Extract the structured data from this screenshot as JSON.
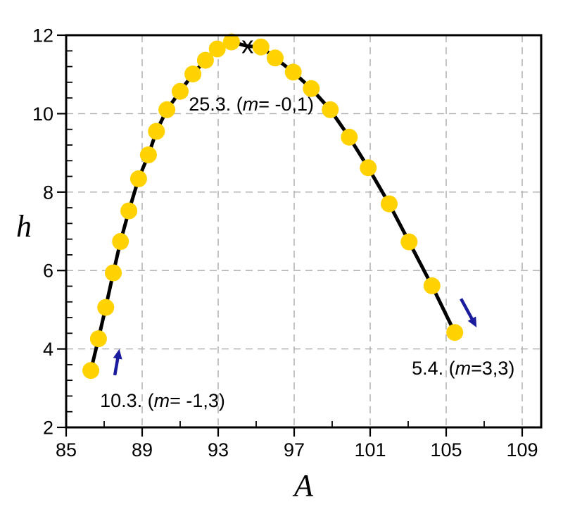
{
  "chart_data": {
    "type": "scatter",
    "title": "",
    "xlabel": "A",
    "ylabel": "h",
    "xlim": [
      85,
      110
    ],
    "ylim": [
      2,
      12
    ],
    "x_major_ticks": [
      85,
      89,
      93,
      97,
      101,
      105,
      109
    ],
    "x_tick_labels": [
      "85",
      "89",
      "93",
      "97",
      "101",
      "105",
      "109"
    ],
    "x_minor_step": 2,
    "y_major_ticks": [
      2,
      4,
      6,
      8,
      10,
      12
    ],
    "y_tick_labels": [
      "2",
      "4",
      "6",
      "8",
      "10",
      "12"
    ],
    "y_minor_step": 0.4,
    "grid": {
      "show": true,
      "style": "dashed",
      "at": "major-ticks",
      "legend": "none"
    },
    "series": [
      {
        "name": "sun-position-curve",
        "marker": "circle",
        "points": [
          [
            86.3,
            3.45
          ],
          [
            86.7,
            4.26
          ],
          [
            87.08,
            5.06
          ],
          [
            87.48,
            5.94
          ],
          [
            87.86,
            6.74
          ],
          [
            88.3,
            7.52
          ],
          [
            88.81,
            8.34
          ],
          [
            89.33,
            8.95
          ],
          [
            89.75,
            9.55
          ],
          [
            90.3,
            10.1
          ],
          [
            91.0,
            10.57
          ],
          [
            91.67,
            11.01
          ],
          [
            92.33,
            11.36
          ],
          [
            92.95,
            11.65
          ],
          [
            93.7,
            11.83
          ],
          [
            94.55,
            11.72
          ],
          [
            95.25,
            11.7
          ],
          [
            96.0,
            11.42
          ],
          [
            96.95,
            11.06
          ],
          [
            97.9,
            10.64
          ],
          [
            98.9,
            10.1
          ],
          [
            99.9,
            9.4
          ],
          [
            100.9,
            8.62
          ],
          [
            102.0,
            7.7
          ],
          [
            103.05,
            6.73
          ],
          [
            104.25,
            5.61
          ],
          [
            105.45,
            4.42
          ]
        ],
        "x_marker_index": 15,
        "x_marker_glyph": "x"
      }
    ],
    "annotations": [
      {
        "name": "annotation-25-3",
        "parts": [
          "25.3. (",
          "m",
          "= -0,1)"
        ],
        "A": 91.45,
        "h": 10.08,
        "anchor": "start"
      },
      {
        "name": "annotation-10-3",
        "parts": [
          "10.3. (",
          "m",
          "= -1,3)"
        ],
        "A": 86.78,
        "h": 2.52,
        "anchor": "start"
      },
      {
        "name": "annotation-5-4",
        "parts": [
          "5.4. (",
          "m",
          "=3,3)"
        ],
        "A": 103.19,
        "h": 3.35,
        "anchor": "start"
      }
    ],
    "arrows": [
      {
        "name": "arrow-up-left",
        "from": [
          87.56,
          3.33
        ],
        "to": [
          87.8,
          4.0
        ]
      },
      {
        "name": "arrow-down-right",
        "from": [
          105.78,
          5.28
        ],
        "to": [
          106.6,
          4.55
        ]
      }
    ]
  },
  "colors": {
    "background": "#ffffff",
    "frame": "#000000",
    "grid": "#ababab",
    "curve_line": "#000000",
    "marker_fill": "#ffd200",
    "arrow": "#1b1b9e",
    "text": "#000000"
  }
}
